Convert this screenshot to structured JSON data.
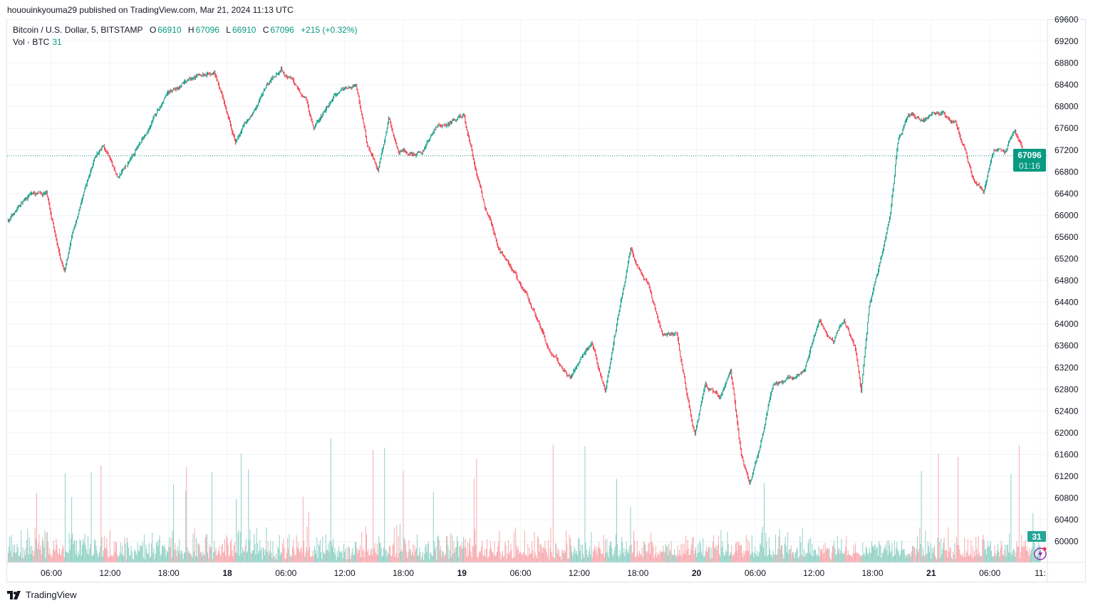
{
  "header": {
    "published": "hououinkyouma29 published on TradingView.com, Mar 21, 2024 11:13 UTC",
    "symbol": "Bitcoin / U.S. Dollar, 5, BITSTAMP",
    "open_label": "O",
    "open": "66910",
    "high_label": "H",
    "high": "67096",
    "low_label": "L",
    "low": "66910",
    "close_label": "C",
    "close": "67096",
    "change": "+215 (+0.32%)",
    "vol_label": "Vol · BTC",
    "vol_value": "31"
  },
  "price_label": {
    "price": "67096",
    "countdown": "01:16"
  },
  "volume_label": "31",
  "footer": {
    "brand": "TradingView",
    "logo_icon": "tradingview-logo-icon"
  },
  "colors": {
    "up": "#089981",
    "down": "#f23645",
    "vol_up": "#8fd1c5",
    "vol_down": "#f7a9ae",
    "grid": "#f0f3fa",
    "flash": "#9c27b0"
  },
  "chart_data": {
    "type": "candlestick",
    "interval": "5m",
    "grid": true,
    "yticks": [
      60000,
      60400,
      60800,
      61200,
      61600,
      62000,
      62400,
      62800,
      63200,
      63600,
      64000,
      64400,
      64800,
      65200,
      65600,
      66000,
      66400,
      66800,
      67200,
      67600,
      68000,
      68400,
      68800,
      69200,
      69600
    ],
    "ylim": [
      59900,
      69600
    ],
    "xlim": [
      "2024-03-17 01:30",
      "2024-03-21 11:45"
    ],
    "xticks": [
      {
        "label": "06:00",
        "t": "2024-03-17 06:00"
      },
      {
        "label": "12:00",
        "t": "2024-03-17 12:00"
      },
      {
        "label": "18:00",
        "t": "2024-03-17 18:00"
      },
      {
        "label": "18",
        "t": "2024-03-18 00:00",
        "bold": true
      },
      {
        "label": "06:00",
        "t": "2024-03-18 06:00"
      },
      {
        "label": "12:00",
        "t": "2024-03-18 12:00"
      },
      {
        "label": "18:00",
        "t": "2024-03-18 18:00"
      },
      {
        "label": "19",
        "t": "2024-03-19 00:00",
        "bold": true
      },
      {
        "label": "06:00",
        "t": "2024-03-19 06:00"
      },
      {
        "label": "12:00",
        "t": "2024-03-19 12:00"
      },
      {
        "label": "18:00",
        "t": "2024-03-19 18:00"
      },
      {
        "label": "20",
        "t": "2024-03-20 00:00",
        "bold": true
      },
      {
        "label": "06:00",
        "t": "2024-03-20 06:00"
      },
      {
        "label": "12:00",
        "t": "2024-03-20 12:00"
      },
      {
        "label": "18:00",
        "t": "2024-03-20 18:00"
      },
      {
        "label": "21",
        "t": "2024-03-21 00:00",
        "bold": true
      },
      {
        "label": "06:00",
        "t": "2024-03-21 06:00"
      },
      {
        "label": "11:",
        "t": "2024-03-21 11:10"
      }
    ],
    "last_price": 67096,
    "approx_close_path": [
      [
        "2024-03-17 01:30",
        65900
      ],
      [
        "2024-03-17 03:40",
        66360
      ],
      [
        "2024-03-17 05:30",
        66420
      ],
      [
        "2024-03-17 07:20",
        64980
      ],
      [
        "2024-03-17 08:45",
        66030
      ],
      [
        "2024-03-17 10:15",
        66950
      ],
      [
        "2024-03-17 11:20",
        67280
      ],
      [
        "2024-03-17 12:45",
        66690
      ],
      [
        "2024-03-17 15:20",
        67410
      ],
      [
        "2024-03-17 17:55",
        68260
      ],
      [
        "2024-03-17 20:25",
        68520
      ],
      [
        "2024-03-17 22:40",
        68650
      ],
      [
        "2024-03-18 00:50",
        67340
      ],
      [
        "2024-03-18 03:00",
        68000
      ],
      [
        "2024-03-18 05:30",
        68720
      ],
      [
        "2024-03-18 08:05",
        68130
      ],
      [
        "2024-03-18 08:50",
        67600
      ],
      [
        "2024-03-18 11:45",
        68320
      ],
      [
        "2024-03-18 13:10",
        68390
      ],
      [
        "2024-03-18 14:15",
        67340
      ],
      [
        "2024-03-18 15:25",
        66820
      ],
      [
        "2024-03-18 16:30",
        67800
      ],
      [
        "2024-03-18 17:35",
        67140
      ],
      [
        "2024-03-18 19:45",
        67140
      ],
      [
        "2024-03-18 21:35",
        67670
      ],
      [
        "2024-03-19 00:10",
        67860
      ],
      [
        "2024-03-19 01:15",
        66950
      ],
      [
        "2024-03-19 02:20",
        66160
      ],
      [
        "2024-03-19 03:45",
        65380
      ],
      [
        "2024-03-19 05:15",
        64980
      ],
      [
        "2024-03-19 07:25",
        64200
      ],
      [
        "2024-03-19 08:50",
        63540
      ],
      [
        "2024-03-19 11:05",
        63020
      ],
      [
        "2024-03-19 13:15",
        63670
      ],
      [
        "2024-03-19 14:40",
        62760
      ],
      [
        "2024-03-19 16:10",
        64330
      ],
      [
        "2024-03-19 17:15",
        65380
      ],
      [
        "2024-03-19 19:05",
        64720
      ],
      [
        "2024-03-19 20:30",
        63810
      ],
      [
        "2024-03-19 22:00",
        63810
      ],
      [
        "2024-03-19 23:05",
        62630
      ],
      [
        "2024-03-19 23:50",
        61970
      ],
      [
        "2024-03-20 00:55",
        62890
      ],
      [
        "2024-03-20 02:20",
        62630
      ],
      [
        "2024-03-20 03:30",
        63150
      ],
      [
        "2024-03-20 04:35",
        61580
      ],
      [
        "2024-03-20 05:25",
        61060
      ],
      [
        "2024-03-20 06:45",
        61970
      ],
      [
        "2024-03-20 07:50",
        62890
      ],
      [
        "2024-03-20 09:40",
        63020
      ],
      [
        "2024-03-20 11:05",
        63150
      ],
      [
        "2024-03-20 12:35",
        64070
      ],
      [
        "2024-03-20 14:00",
        63670
      ],
      [
        "2024-03-20 15:05",
        64070
      ],
      [
        "2024-03-20 16:15",
        63540
      ],
      [
        "2024-03-20 16:50",
        62760
      ],
      [
        "2024-03-20 17:40",
        64330
      ],
      [
        "2024-03-20 18:45",
        65110
      ],
      [
        "2024-03-20 19:50",
        66030
      ],
      [
        "2024-03-20 20:35",
        67340
      ],
      [
        "2024-03-20 21:40",
        67860
      ],
      [
        "2024-03-20 23:30",
        67800
      ],
      [
        "2024-03-21 00:55",
        67860
      ],
      [
        "2024-03-21 02:25",
        67730
      ],
      [
        "2024-03-21 03:30",
        67210
      ],
      [
        "2024-03-21 04:15",
        66690
      ],
      [
        "2024-03-21 05:20",
        66420
      ],
      [
        "2024-03-21 06:25",
        67210
      ],
      [
        "2024-03-21 07:30",
        67140
      ],
      [
        "2024-03-21 08:35",
        67540
      ],
      [
        "2024-03-21 10:05",
        66820
      ],
      [
        "2024-03-21 11:10",
        67096
      ]
    ]
  }
}
